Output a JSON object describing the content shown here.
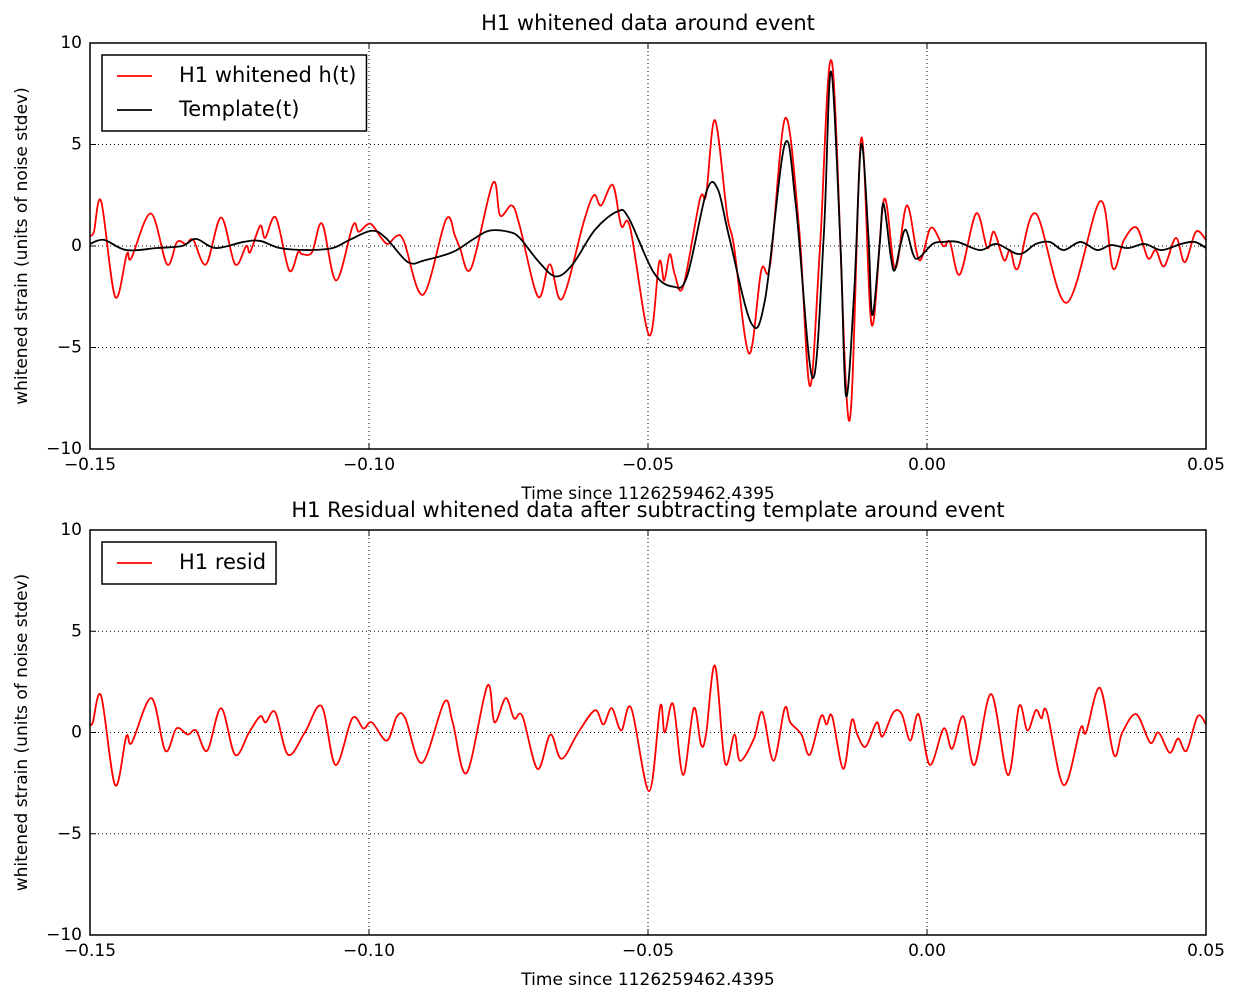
{
  "chart_data": [
    {
      "type": "line",
      "title": "H1 whitened data around event",
      "xlabel": "Time since 1126259462.4395",
      "ylabel": "whitened strain (units of noise stdev)",
      "xlim": [
        -0.15,
        0.05
      ],
      "ylim": [
        -10,
        10
      ],
      "xticks": [
        {
          "value": -0.15,
          "label": "−0.15"
        },
        {
          "value": -0.1,
          "label": "−0.10"
        },
        {
          "value": -0.05,
          "label": "−0.05"
        },
        {
          "value": 0,
          "label": "0.00"
        },
        0.05
      ],
      "yticks": [
        {
          "value": -10,
          "label": "−10"
        },
        {
          "value": -5,
          "label": "−5"
        },
        0,
        5,
        10
      ],
      "grid": true,
      "legend": "upper left",
      "series": [
        {
          "name": "H1 whitened h(t)",
          "color": "#ff0000",
          "x": [
            -0.15,
            -0.1493,
            -0.148,
            -0.1455,
            -0.1434,
            -0.1426,
            -0.1391,
            -0.1362,
            -0.1344,
            -0.1328,
            -0.1315,
            -0.1292,
            -0.1265,
            -0.124,
            -0.122,
            -0.1213,
            -0.1195,
            -0.1186,
            -0.1167,
            -0.1143,
            -0.1127,
            -0.112,
            -0.1102,
            -0.1084,
            -0.1059,
            -0.1029,
            -0.1018,
            -0.0998,
            -0.0978,
            -0.0966,
            -0.095,
            -0.0937,
            -0.0903,
            -0.0862,
            -0.0846,
            -0.0837,
            -0.0817,
            -0.0778,
            -0.0765,
            -0.0744,
            -0.073,
            -0.0697,
            -0.0676,
            -0.0654,
            -0.0615,
            -0.0597,
            -0.0584,
            -0.0563,
            -0.0548,
            -0.0532,
            -0.0498,
            -0.048,
            -0.0471,
            -0.0461,
            -0.0452,
            -0.0437,
            -0.0407,
            -0.0396,
            -0.038,
            -0.0358,
            -0.0346,
            -0.0319,
            -0.0297,
            -0.0281,
            -0.0254,
            -0.0229,
            -0.021,
            -0.0192,
            -0.017,
            -0.014,
            -0.0118,
            -0.0099,
            -0.0077,
            -0.0057,
            -0.0036,
            -0.0014,
            0.0007,
            0.0029,
            0.0041,
            0.0059,
            0.0088,
            0.0108,
            0.012,
            0.0138,
            0.0149,
            0.0163,
            0.0195,
            0.025,
            0.031,
            0.0333,
            0.0353,
            0.0376,
            0.0396,
            0.041,
            0.0425,
            0.0446,
            0.0462,
            0.0482,
            0.05
          ],
          "values": [
            0.5,
            0.7,
            2.2,
            -2.5,
            -0.4,
            -0.6,
            1.6,
            -0.9,
            0.2,
            0.1,
            0.3,
            -0.9,
            1.4,
            -0.9,
            0.0,
            -0.3,
            1.0,
            0.4,
            1.4,
            -1.2,
            -0.3,
            -0.4,
            -0.3,
            1.1,
            -1.7,
            1.0,
            0.7,
            1.1,
            0.4,
            0.1,
            0.5,
            0.2,
            -2.4,
            1.3,
            0.5,
            -0.1,
            -1.1,
            3.1,
            1.5,
            2.0,
            1.0,
            -2.5,
            -0.9,
            -2.6,
            1.2,
            2.5,
            2.0,
            3.0,
            1.0,
            0.9,
            -4.4,
            -0.8,
            -1.7,
            -0.4,
            -1.4,
            -2.0,
            2.3,
            2.5,
            6.2,
            1.5,
            0.0,
            -5.3,
            -1.2,
            -0.9,
            6.3,
            0.8,
            -6.9,
            -0.2,
            9.0,
            -8.6,
            5.3,
            -3.9,
            2.3,
            -1.1,
            2.0,
            -0.7,
            0.9,
            0.0,
            0.2,
            -1.4,
            1.6,
            -0.1,
            0.7,
            -0.7,
            -0.2,
            -1.1,
            1.6,
            -2.8,
            2.2,
            -1.1,
            0.3,
            0.9,
            -0.6,
            -0.2,
            -1.0,
            0.4,
            -0.8,
            0.7,
            0.3
          ]
        },
        {
          "name": "Template(t)",
          "color": "#000000",
          "x": [
            -0.15,
            -0.1475,
            -0.1435,
            -0.138,
            -0.1335,
            -0.131,
            -0.1275,
            -0.1225,
            -0.1195,
            -0.116,
            -0.111,
            -0.1065,
            -0.1035,
            -0.0995,
            -0.097,
            -0.093,
            -0.09,
            -0.085,
            -0.0815,
            -0.0785,
            -0.075,
            -0.073,
            -0.0695,
            -0.0665,
            -0.0635,
            -0.0595,
            -0.0555,
            -0.0535,
            -0.049,
            -0.0455,
            -0.043,
            -0.0395,
            -0.0375,
            -0.0355,
            -0.0315,
            -0.029,
            -0.0255,
            -0.0235,
            -0.0205,
            -0.0185,
            -0.0172,
            -0.0155,
            -0.0145,
            -0.013,
            -0.0118,
            -0.0105,
            -0.0098,
            -0.0085,
            -0.0078,
            -0.0065,
            -0.0058,
            -0.0048,
            -0.0038,
            -0.0025,
            -0.0015,
            0.001,
            0.003,
            0.0055,
            0.0095,
            0.0125,
            0.0165,
            0.0195,
            0.022,
            0.0245,
            0.0275,
            0.0305,
            0.033,
            0.036,
            0.039,
            0.042,
            0.0455,
            0.048,
            0.05
          ],
          "values": [
            0.1,
            0.3,
            -0.2,
            -0.1,
            0.0,
            0.35,
            -0.1,
            0.2,
            0.25,
            -0.1,
            -0.2,
            -0.1,
            0.3,
            0.75,
            0.4,
            -0.8,
            -0.7,
            -0.3,
            0.3,
            0.75,
            0.7,
            0.4,
            -0.8,
            -1.5,
            -0.9,
            0.8,
            1.7,
            1.4,
            -1.3,
            -2.0,
            -1.5,
            2.7,
            2.8,
            0.5,
            -3.8,
            -2.6,
            5.0,
            2.0,
            -6.5,
            0.5,
            8.6,
            0.0,
            -7.4,
            -2.0,
            5.0,
            0.5,
            -3.4,
            0.0,
            2.1,
            -0.5,
            -1.2,
            0.0,
            0.8,
            -0.4,
            -0.6,
            0.1,
            0.2,
            0.2,
            -0.2,
            0.1,
            -0.4,
            0.1,
            0.2,
            -0.2,
            0.2,
            -0.2,
            0.05,
            -0.1,
            0.1,
            -0.2,
            0.1,
            0.2,
            -0.1
          ]
        }
      ]
    },
    {
      "type": "line",
      "title": "H1 Residual whitened data after subtracting template around event",
      "xlabel": "Time since 1126259462.4395",
      "ylabel": "whitened strain (units of noise stdev)",
      "xlim": [
        -0.15,
        0.05
      ],
      "ylim": [
        -10,
        10
      ],
      "xticks": [
        {
          "value": -0.15,
          "label": "−0.15"
        },
        {
          "value": -0.1,
          "label": "−0.10"
        },
        {
          "value": -0.05,
          "label": "−0.05"
        },
        {
          "value": 0,
          "label": "0.00"
        },
        0.05
      ],
      "yticks": [
        {
          "value": -10,
          "label": "−10"
        },
        {
          "value": -5,
          "label": "−5"
        },
        0,
        5,
        10
      ],
      "grid": true,
      "legend": "upper left",
      "series": [
        {
          "name": "H1 resid",
          "color": "#ff0000",
          "x": [
            -0.15,
            -0.1495,
            -0.148,
            -0.1455,
            -0.1435,
            -0.1425,
            -0.139,
            -0.1365,
            -0.1345,
            -0.1325,
            -0.131,
            -0.129,
            -0.1265,
            -0.124,
            -0.1215,
            -0.1195,
            -0.1185,
            -0.1168,
            -0.1145,
            -0.1115,
            -0.1085,
            -0.106,
            -0.103,
            -0.101,
            -0.0995,
            -0.0968,
            -0.095,
            -0.0935,
            -0.0905,
            -0.0865,
            -0.085,
            -0.0825,
            -0.0788,
            -0.0775,
            -0.0755,
            -0.074,
            -0.0725,
            -0.0698,
            -0.0675,
            -0.0655,
            -0.0625,
            -0.0595,
            -0.058,
            -0.0565,
            -0.0548,
            -0.053,
            -0.0498,
            -0.0478,
            -0.047,
            -0.0455,
            -0.0437,
            -0.0418,
            -0.0405,
            -0.0396,
            -0.038,
            -0.0362,
            -0.0345,
            -0.0335,
            -0.031,
            -0.0295,
            -0.0275,
            -0.0255,
            -0.0245,
            -0.0225,
            -0.021,
            -0.019,
            -0.018,
            -0.017,
            -0.015,
            -0.0135,
            -0.0125,
            -0.011,
            -0.009,
            -0.008,
            -0.006,
            -0.0045,
            -0.003,
            -0.0015,
            0.0005,
            0.003,
            0.0045,
            0.0065,
            0.0085,
            0.0115,
            0.0145,
            0.0165,
            0.018,
            0.0195,
            0.0205,
            0.0215,
            0.0245,
            0.0275,
            0.0285,
            0.031,
            0.0335,
            0.035,
            0.0375,
            0.04,
            0.0415,
            0.0435,
            0.045,
            0.0465,
            0.0485,
            0.05
          ],
          "values": [
            0.4,
            0.5,
            1.8,
            -2.6,
            -0.2,
            -0.5,
            1.7,
            -0.9,
            0.2,
            -0.1,
            0.1,
            -0.9,
            1.2,
            -1.1,
            0.0,
            0.8,
            0.5,
            1.0,
            -1.1,
            0.0,
            1.3,
            -1.6,
            0.7,
            0.2,
            0.5,
            -0.4,
            0.8,
            0.7,
            -1.5,
            1.5,
            0.5,
            -2.0,
            2.3,
            0.5,
            1.7,
            0.7,
            0.8,
            -1.8,
            -0.1,
            -1.3,
            0.0,
            1.1,
            0.4,
            1.2,
            0.1,
            1.2,
            -2.9,
            1.3,
            0.0,
            1.4,
            -2.1,
            1.2,
            -0.6,
            -0.1,
            3.3,
            -1.5,
            -0.1,
            -1.4,
            -0.3,
            1.0,
            -1.4,
            1.2,
            0.5,
            -0.1,
            -1.1,
            0.8,
            0.4,
            0.8,
            -1.8,
            0.6,
            -0.1,
            -0.7,
            0.5,
            -0.2,
            1.0,
            0.9,
            -0.4,
            0.9,
            -1.6,
            0.2,
            -0.8,
            0.8,
            -1.6,
            1.9,
            -2.1,
            1.3,
            0.1,
            1.1,
            0.7,
            1.0,
            -2.6,
            0.2,
            0.0,
            2.2,
            -1.1,
            0.0,
            0.9,
            -0.5,
            0.0,
            -1.0,
            -0.3,
            -0.9,
            0.8,
            0.4
          ]
        }
      ]
    }
  ]
}
